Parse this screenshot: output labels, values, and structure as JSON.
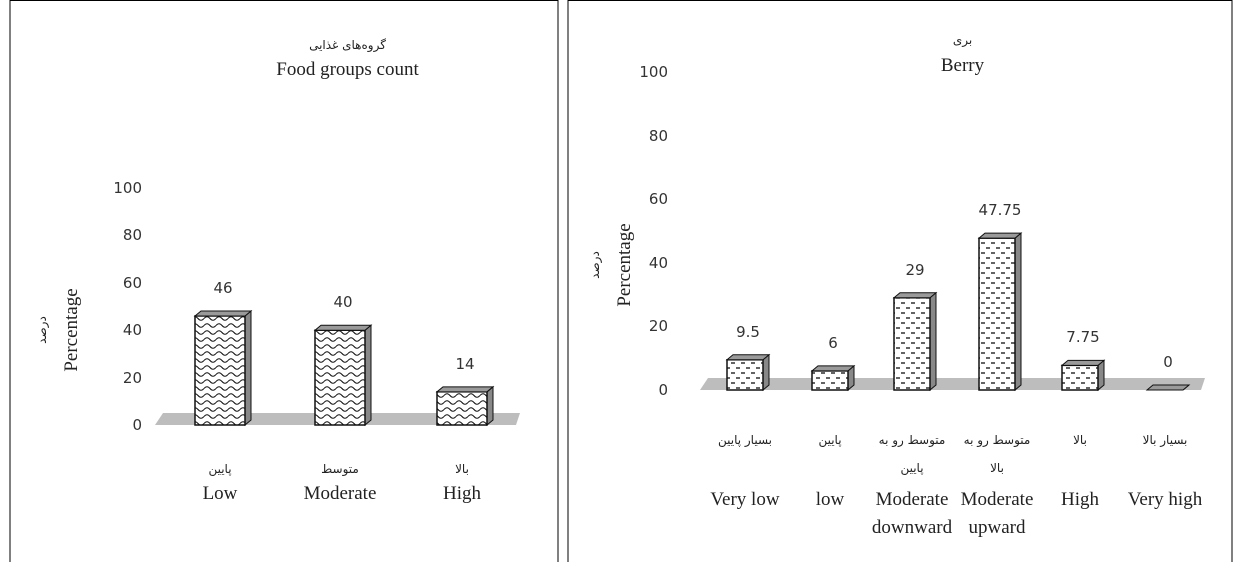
{
  "chart_data": [
    {
      "type": "bar",
      "title_fa": "گروه‌های غذایی",
      "title": "Food groups count",
      "ylabel_fa": "درصد",
      "ylabel": "Percentage",
      "categories_fa": [
        "پایین",
        "متوسط",
        "بالا"
      ],
      "categories": [
        "Low",
        "Moderate",
        "High"
      ],
      "values": [
        46,
        40,
        14
      ],
      "color": "#ffffff",
      "ylim": [
        0,
        100
      ],
      "yticks": [
        0,
        20,
        40,
        60,
        80,
        100
      ],
      "grid": false
    },
    {
      "type": "bar",
      "title_fa": "بری",
      "title": "Berry",
      "ylabel_fa": "درصد",
      "ylabel": "Percentage",
      "categories_fa": [
        "بسیار پایین",
        "پایین",
        "متوسط رو به پایین",
        "متوسط رو به بالا",
        "بالا",
        "بسیار بالا"
      ],
      "categories": [
        "Very low",
        "low",
        "Moderate downward",
        "Moderate upward",
        "High",
        "Very high"
      ],
      "values": [
        9.5,
        6,
        29,
        47.75,
        7.75,
        0
      ],
      "color": "#ffffff",
      "ylim": [
        0,
        100
      ],
      "yticks": [
        0,
        20,
        40,
        60,
        80,
        100
      ],
      "grid": false
    }
  ]
}
